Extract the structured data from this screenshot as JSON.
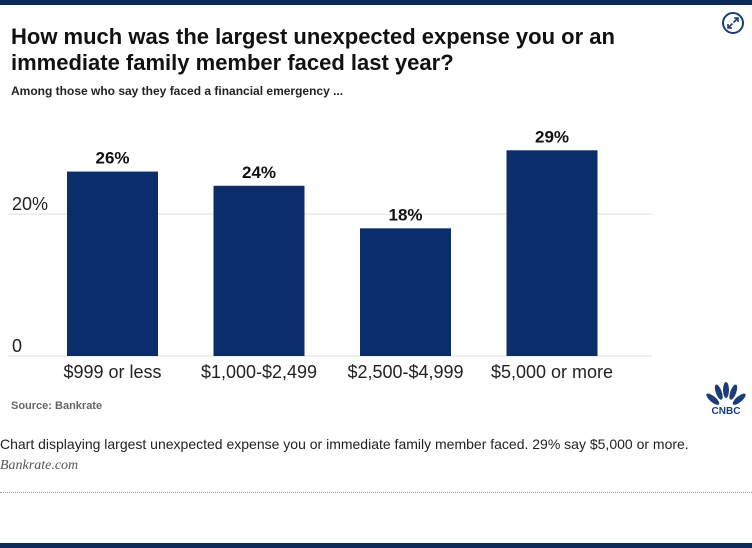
{
  "title": "How much was the largest unexpected expense you or an immediate family member faced last year?",
  "subtitle": "Among those who say they faced a financial emergency ...",
  "source": "Source: Bankrate",
  "caption": "Chart displaying largest unexpected expense you or immediate family member faced. 29% say $5,000 or more.",
  "credit": "Bankrate.com",
  "brand": "CNBC",
  "icons": {
    "expand": "expand-arrows-icon",
    "logo": "cnbc-peacock-icon"
  },
  "colors": {
    "bar": "#0b2d6b",
    "grid": "#dddddd",
    "accent": "#0a2a5c"
  },
  "chart_data": {
    "type": "bar",
    "categories": [
      "$999 or less",
      "$1,000-$2,499",
      "$2,500-$4,999",
      "$5,000 or more"
    ],
    "values": [
      26,
      24,
      18,
      29
    ],
    "value_labels": [
      "26%",
      "24%",
      "18%",
      "29%"
    ],
    "yticks": [
      0,
      20
    ],
    "ytick_labels": [
      "0",
      "20%"
    ],
    "ylim": [
      0,
      30
    ],
    "grid": true,
    "legend": "none"
  }
}
